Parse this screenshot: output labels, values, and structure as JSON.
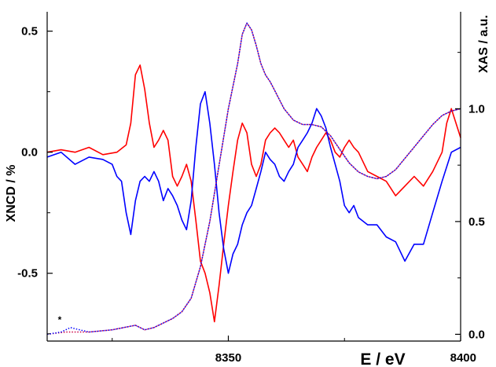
{
  "chart_data": {
    "type": "line",
    "title": "",
    "xlabel": "E / eV",
    "ylabel_left": "XNCD / %",
    "ylabel_right": "XAS / a.u.",
    "annotation": "*",
    "xlim": [
      8311,
      8400
    ],
    "ylim_left": [
      -0.78,
      0.58
    ],
    "ylim_right": [
      -0.03,
      1.43
    ],
    "x_ticks": [
      8350,
      8400
    ],
    "y_ticks_left": [
      0.5,
      0.0,
      -0.5
    ],
    "y_tick_labels_left": [
      "0.5",
      "0.0",
      "-0.5"
    ],
    "y_ticks_right": [
      1.0,
      0.5,
      0.0
    ],
    "y_tick_labels_right": [
      "1.0",
      "0.5",
      "0.0"
    ],
    "series": [
      {
        "color": "#ff0000",
        "style": "solid",
        "axis": "left",
        "x": [
          8311,
          8314,
          8317,
          8320,
          8323,
          8326,
          8328,
          8329,
          8330,
          8331,
          8332,
          8333,
          8334,
          8335,
          8336,
          8337,
          8338,
          8339,
          8340,
          8341,
          8342,
          8343,
          8344,
          8345,
          8346,
          8347,
          8348,
          8349,
          8350,
          8351,
          8352,
          8353,
          8354,
          8355,
          8356,
          8357,
          8358,
          8359,
          8360,
          8361,
          8362,
          8363,
          8364,
          8365,
          8366,
          8367,
          8368,
          8369,
          8370,
          8371,
          8372,
          8373,
          8374,
          8375,
          8376,
          8377,
          8378,
          8380,
          8382,
          8384,
          8386,
          8388,
          8390,
          8392,
          8394,
          8396,
          8397,
          8398,
          8399,
          8400
        ],
        "y": [
          0.0,
          0.01,
          0.0,
          0.02,
          -0.01,
          0.0,
          0.03,
          0.12,
          0.32,
          0.36,
          0.26,
          0.12,
          0.02,
          0.05,
          0.09,
          0.05,
          -0.1,
          -0.14,
          -0.1,
          -0.05,
          -0.12,
          -0.28,
          -0.45,
          -0.5,
          -0.58,
          -0.7,
          -0.55,
          -0.38,
          -0.22,
          -0.08,
          0.05,
          0.12,
          0.08,
          -0.05,
          -0.1,
          -0.05,
          0.05,
          0.08,
          0.1,
          0.08,
          0.05,
          0.02,
          0.05,
          -0.02,
          -0.05,
          -0.08,
          -0.02,
          0.02,
          0.05,
          0.08,
          0.05,
          0.0,
          -0.02,
          0.02,
          0.05,
          0.02,
          0.0,
          -0.08,
          -0.1,
          -0.12,
          -0.18,
          -0.14,
          -0.1,
          -0.14,
          -0.08,
          0.0,
          0.12,
          0.18,
          0.12,
          0.06
        ]
      },
      {
        "color": "#0000ff",
        "style": "solid",
        "axis": "left",
        "x": [
          8311,
          8314,
          8317,
          8320,
          8323,
          8325,
          8326,
          8327,
          8328,
          8329,
          8330,
          8331,
          8332,
          8333,
          8334,
          8335,
          8336,
          8337,
          8338,
          8339,
          8340,
          8341,
          8342,
          8343,
          8344,
          8345,
          8346,
          8347,
          8348,
          8349,
          8350,
          8351,
          8352,
          8353,
          8354,
          8355,
          8356,
          8357,
          8358,
          8359,
          8360,
          8361,
          8362,
          8363,
          8364,
          8365,
          8366,
          8367,
          8368,
          8369,
          8370,
          8371,
          8372,
          8373,
          8374,
          8375,
          8376,
          8377,
          8378,
          8380,
          8382,
          8384,
          8386,
          8388,
          8390,
          8392,
          8394,
          8396,
          8398,
          8400
        ],
        "y": [
          -0.02,
          0.0,
          -0.05,
          -0.02,
          -0.03,
          -0.05,
          -0.1,
          -0.12,
          -0.25,
          -0.34,
          -0.2,
          -0.12,
          -0.1,
          -0.12,
          -0.08,
          -0.12,
          -0.2,
          -0.15,
          -0.18,
          -0.22,
          -0.28,
          -0.32,
          -0.2,
          0.02,
          0.2,
          0.25,
          0.12,
          -0.05,
          -0.25,
          -0.4,
          -0.5,
          -0.42,
          -0.38,
          -0.3,
          -0.25,
          -0.22,
          -0.15,
          -0.08,
          0.0,
          -0.03,
          -0.05,
          -0.1,
          -0.12,
          -0.08,
          -0.05,
          0.02,
          0.05,
          0.08,
          0.12,
          0.18,
          0.15,
          0.1,
          0.02,
          -0.05,
          -0.12,
          -0.22,
          -0.25,
          -0.22,
          -0.27,
          -0.3,
          -0.3,
          -0.35,
          -0.37,
          -0.45,
          -0.38,
          -0.38,
          -0.25,
          -0.12,
          0.0,
          0.02
        ]
      },
      {
        "color": "#cc0044",
        "style": "dotted",
        "axis": "right",
        "x": [
          8311,
          8315,
          8320,
          8325,
          8330,
          8332,
          8334,
          8336,
          8338,
          8340,
          8342,
          8344,
          8346,
          8348,
          8350,
          8352,
          8353,
          8354,
          8355,
          8356,
          8357,
          8358,
          8359,
          8360,
          8362,
          8364,
          8366,
          8368,
          8370,
          8372,
          8374,
          8376,
          8378,
          8380,
          8382,
          8384,
          8386,
          8388,
          8390,
          8392,
          8394,
          8396,
          8398,
          8400
        ],
        "y": [
          0.0,
          0.01,
          0.01,
          0.02,
          0.04,
          0.02,
          0.03,
          0.05,
          0.07,
          0.1,
          0.16,
          0.3,
          0.5,
          0.75,
          1.0,
          1.2,
          1.33,
          1.38,
          1.35,
          1.28,
          1.2,
          1.15,
          1.12,
          1.08,
          1.0,
          0.95,
          0.93,
          0.93,
          0.92,
          0.88,
          0.82,
          0.76,
          0.72,
          0.7,
          0.69,
          0.7,
          0.73,
          0.78,
          0.83,
          0.88,
          0.93,
          0.97,
          0.99,
          1.0
        ]
      },
      {
        "color": "#0000ff",
        "style": "dotted",
        "axis": "right",
        "x": [
          8311,
          8314,
          8316,
          8318,
          8320,
          8325,
          8330,
          8332,
          8334,
          8336,
          8338,
          8340,
          8342,
          8344,
          8346,
          8348,
          8350,
          8352,
          8353,
          8354,
          8355,
          8356,
          8357,
          8358,
          8359,
          8360,
          8362,
          8364,
          8366,
          8368,
          8370,
          8372,
          8374,
          8376,
          8378,
          8380,
          8382,
          8384,
          8386,
          8388,
          8390,
          8392,
          8394,
          8396,
          8398,
          8400
        ],
        "y": [
          0.0,
          0.01,
          0.03,
          0.02,
          0.01,
          0.02,
          0.04,
          0.02,
          0.03,
          0.05,
          0.07,
          0.1,
          0.16,
          0.3,
          0.5,
          0.75,
          1.0,
          1.2,
          1.33,
          1.38,
          1.35,
          1.28,
          1.2,
          1.15,
          1.12,
          1.08,
          1.0,
          0.95,
          0.93,
          0.93,
          0.92,
          0.88,
          0.82,
          0.76,
          0.72,
          0.7,
          0.69,
          0.7,
          0.73,
          0.78,
          0.83,
          0.88,
          0.93,
          0.97,
          0.99,
          1.0
        ]
      }
    ]
  }
}
